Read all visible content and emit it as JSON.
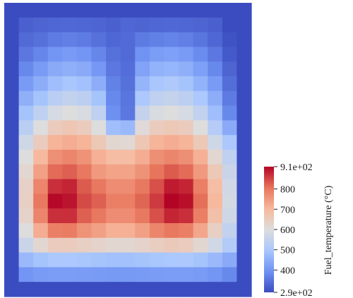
{
  "chart_data": {
    "type": "heatmap",
    "title": "",
    "xlabel": "",
    "ylabel": "",
    "grid": false,
    "legend_position": "right",
    "colorbar": {
      "title": "Fuel_temperature (°C)",
      "min": 290,
      "max": 910,
      "tick_values": [
        910,
        800,
        700,
        600,
        500,
        400,
        290
      ],
      "tick_labels": [
        "9.1e+02",
        "800",
        "700",
        "600",
        "500",
        "400",
        "2.9e+02"
      ],
      "colormap": "Cool to Warm",
      "colors": [
        "#3b4cc0",
        "#6f92f3",
        "#aac7fd",
        "#dddddd",
        "#f7b89c",
        "#e7745b",
        "#b40426"
      ]
    },
    "grid_shape": {
      "rows": 20,
      "cols": 17
    },
    "row_temperatures": [
      [
        290,
        290,
        290,
        290,
        290,
        290,
        290,
        290,
        290,
        290,
        290,
        290,
        290,
        290,
        290,
        290,
        290
      ],
      [
        290,
        320,
        325,
        330,
        332,
        330,
        325,
        320,
        330,
        325,
        330,
        332,
        330,
        325,
        320,
        290,
        290
      ],
      [
        290,
        335,
        345,
        360,
        365,
        360,
        345,
        330,
        335,
        360,
        368,
        372,
        365,
        350,
        330,
        300,
        290
      ],
      [
        290,
        355,
        375,
        400,
        410,
        400,
        375,
        345,
        335,
        395,
        415,
        420,
        410,
        385,
        355,
        310,
        290
      ],
      [
        290,
        380,
        410,
        440,
        450,
        440,
        405,
        355,
        340,
        425,
        455,
        462,
        450,
        420,
        380,
        325,
        290
      ],
      [
        290,
        410,
        445,
        480,
        495,
        485,
        445,
        370,
        345,
        460,
        495,
        505,
        490,
        455,
        410,
        340,
        290
      ],
      [
        290,
        450,
        490,
        530,
        545,
        535,
        490,
        380,
        350,
        500,
        540,
        550,
        535,
        500,
        445,
        360,
        290
      ],
      [
        290,
        490,
        540,
        585,
        600,
        590,
        540,
        390,
        355,
        550,
        590,
        600,
        585,
        545,
        480,
        380,
        290
      ],
      [
        290,
        530,
        600,
        650,
        665,
        650,
        600,
        480,
        470,
        610,
        650,
        660,
        650,
        600,
        520,
        440,
        290
      ],
      [
        290,
        570,
        650,
        710,
        720,
        710,
        660,
        620,
        615,
        665,
        710,
        720,
        710,
        660,
        570,
        500,
        290
      ],
      [
        290,
        600,
        700,
        765,
        780,
        760,
        715,
        690,
        690,
        720,
        765,
        780,
        765,
        715,
        620,
        540,
        290
      ],
      [
        290,
        620,
        740,
        815,
        825,
        800,
        750,
        735,
        735,
        760,
        805,
        830,
        815,
        750,
        660,
        560,
        290
      ],
      [
        290,
        635,
        780,
        870,
        880,
        830,
        800,
        770,
        770,
        800,
        840,
        890,
        880,
        790,
        690,
        575,
        290
      ],
      [
        290,
        640,
        800,
        905,
        895,
        845,
        825,
        790,
        790,
        820,
        860,
        910,
        900,
        810,
        700,
        580,
        290
      ],
      [
        290,
        630,
        780,
        870,
        870,
        825,
        800,
        770,
        770,
        800,
        840,
        880,
        870,
        790,
        685,
        570,
        290
      ],
      [
        290,
        600,
        720,
        790,
        795,
        760,
        740,
        715,
        715,
        740,
        780,
        800,
        790,
        730,
        640,
        545,
        290
      ],
      [
        290,
        560,
        620,
        650,
        650,
        640,
        630,
        620,
        620,
        630,
        645,
        655,
        650,
        620,
        575,
        515,
        290
      ],
      [
        290,
        470,
        490,
        500,
        500,
        495,
        490,
        485,
        485,
        490,
        495,
        500,
        500,
        490,
        470,
        440,
        290
      ],
      [
        290,
        400,
        410,
        415,
        415,
        412,
        410,
        408,
        408,
        410,
        412,
        415,
        415,
        410,
        400,
        380,
        290
      ],
      [
        290,
        290,
        290,
        290,
        290,
        290,
        290,
        290,
        290,
        290,
        290,
        290,
        290,
        290,
        290,
        290,
        290
      ]
    ]
  }
}
